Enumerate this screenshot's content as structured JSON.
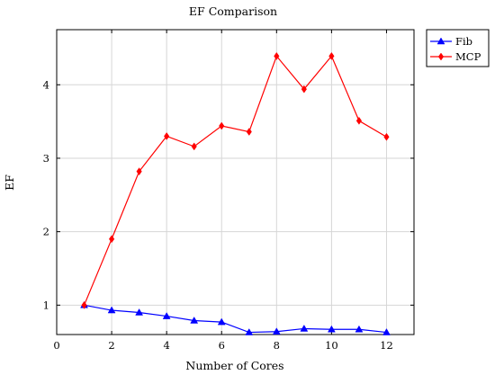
{
  "chart_data": {
    "type": "line",
    "title": "EF Comparison",
    "xlabel": "Number of Cores",
    "ylabel": "EF",
    "x": [
      1,
      2,
      3,
      4,
      5,
      6,
      7,
      8,
      9,
      10,
      11,
      12
    ],
    "xlim": [
      0,
      13
    ],
    "ylim": [
      0.6,
      4.75
    ],
    "xticks": [
      0,
      2,
      4,
      6,
      8,
      10,
      12
    ],
    "yticks": [
      1,
      2,
      3,
      4
    ],
    "grid": true,
    "legend_position": "outside-top-right",
    "series": [
      {
        "name": "Fib",
        "color": "#0000ff",
        "marker": "triangle",
        "values": [
          1.0,
          0.93,
          0.9,
          0.85,
          0.79,
          0.77,
          0.63,
          0.64,
          0.68,
          0.67,
          0.67,
          0.63
        ]
      },
      {
        "name": "MCP",
        "color": "#ff0000",
        "marker": "diamond",
        "values": [
          1.0,
          1.9,
          2.82,
          3.3,
          3.16,
          3.44,
          3.36,
          4.39,
          3.94,
          4.39,
          3.51,
          3.29
        ]
      }
    ]
  }
}
